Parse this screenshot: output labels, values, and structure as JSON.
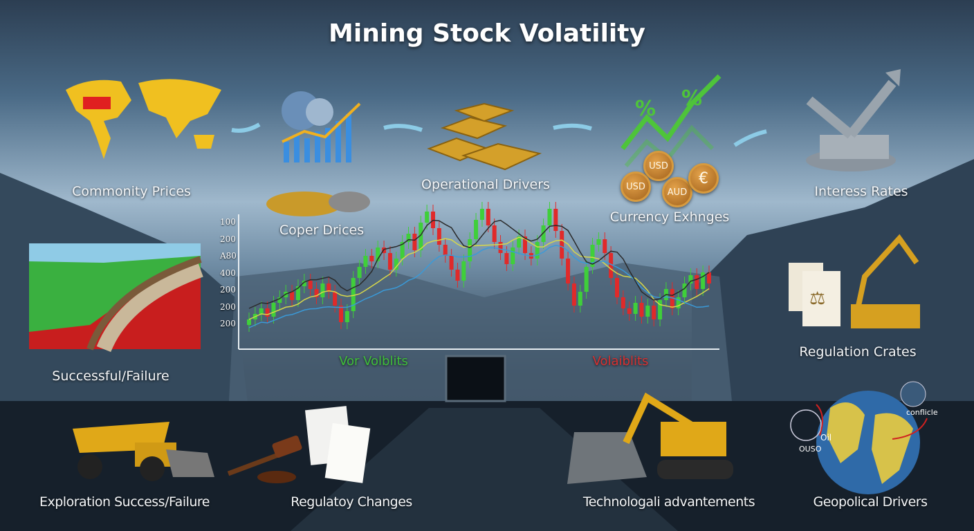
{
  "title": "Mining Stock Volatility",
  "factors": {
    "commodity_prices": "Commonity Prices",
    "copper_prices": "Coper Drices",
    "operational_drivers": "Operational Drivers",
    "currency_exchanges": "Currency Exhnges",
    "interest_rates": "Interess Rates",
    "successful_failure": "Successful/Failure",
    "regulation_crates": "Regulation Crates",
    "exploration": "Exploration Success/Failure",
    "regulatory_changes": "Regulatoy Changes",
    "technological": "Technologali advantements",
    "geopolitical": "Geopolical Drivers"
  },
  "currency_coins": [
    "USD",
    "USD",
    "AUD",
    "€"
  ],
  "percent_symbols": [
    "%",
    "%"
  ],
  "geo_tags": {
    "conflict": "conflicle",
    "ouso": "OUSO",
    "oil": "Oil"
  },
  "chart_data": {
    "type": "candlestick",
    "y_tick_labels": [
      "100",
      "200",
      "A80",
      "400",
      "200",
      "200",
      "200"
    ],
    "x_labels": [
      {
        "text": "Vor Volblits",
        "color": "#3fbf3a"
      },
      {
        "text": "Volaiblits",
        "color": "#d83030"
      }
    ],
    "ylim": [
      0,
      100
    ],
    "closes": [
      14,
      18,
      22,
      16,
      26,
      30,
      34,
      28,
      38,
      42,
      36,
      30,
      40,
      34,
      24,
      12,
      20,
      44,
      52,
      60,
      56,
      66,
      62,
      50,
      58,
      70,
      76,
      64,
      84,
      92,
      80,
      68,
      60,
      50,
      42,
      56,
      72,
      86,
      94,
      82,
      70,
      62,
      54,
      66,
      74,
      62,
      58,
      70,
      82,
      94,
      78,
      58,
      40,
      24,
      34,
      52,
      68,
      72,
      62,
      44,
      30,
      22,
      18,
      26,
      16,
      24,
      14,
      28,
      36,
      22,
      30,
      40,
      46,
      36,
      48,
      40
    ],
    "colors": {
      "up": "#3fcf3a",
      "down": "#e02a2a",
      "ma1": "#d8d84a",
      "ma2": "#3a9ad8",
      "ma3": "#2a2a2a"
    }
  }
}
